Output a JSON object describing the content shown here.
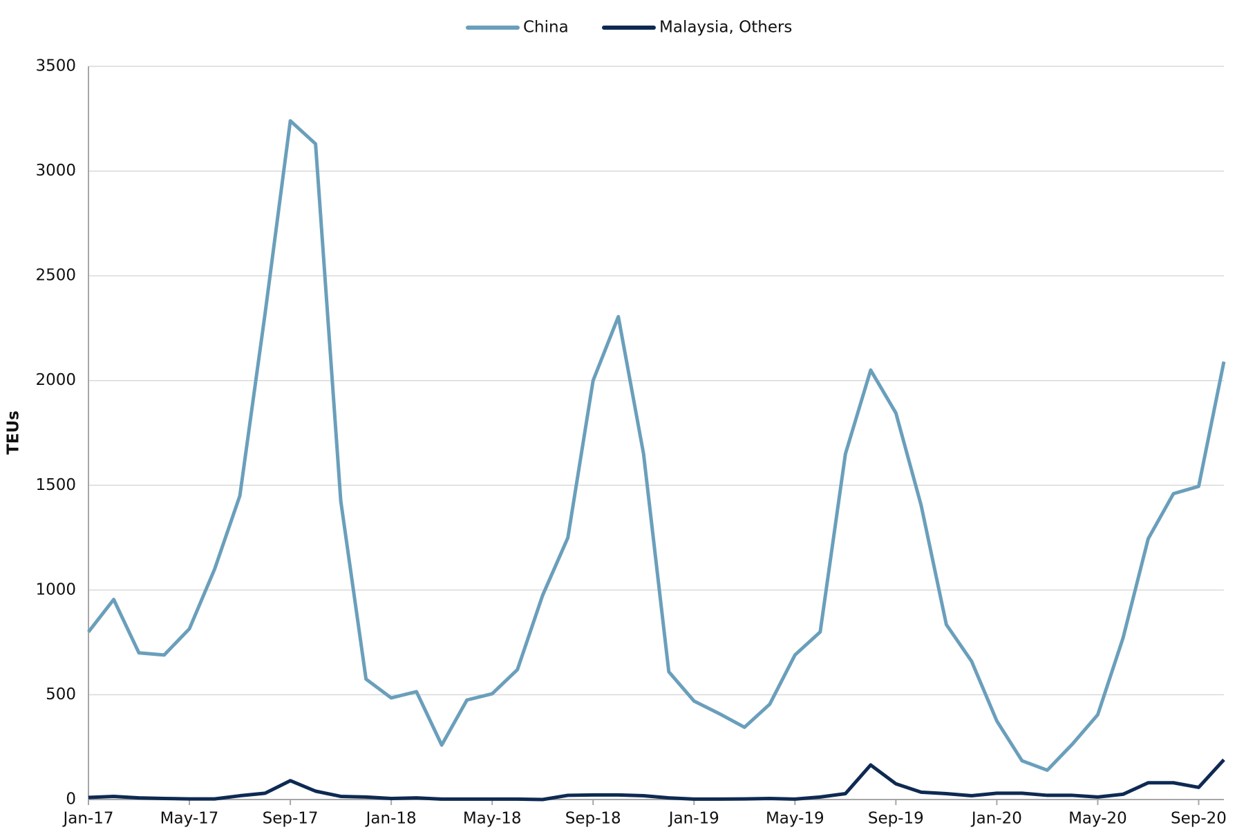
{
  "chart_data": {
    "type": "line",
    "y_label": "TEUs",
    "categories": [
      "Jan-17",
      null,
      null,
      null,
      "May-17",
      null,
      null,
      null,
      "Sep-17",
      null,
      null,
      null,
      "Jan-18",
      null,
      null,
      null,
      "May-18",
      null,
      null,
      null,
      "Sep-18",
      null,
      null,
      null,
      "Jan-19",
      null,
      null,
      null,
      "May-19",
      null,
      null,
      null,
      "Sep-19",
      null,
      null,
      null,
      "Jan-20",
      null,
      null,
      null,
      "May-20",
      null,
      null,
      null,
      "Sep-20",
      null
    ],
    "series": [
      {
        "name": "China",
        "color": "#6a9fbb",
        "values": [
          800,
          955,
          700,
          690,
          815,
          1100,
          1450,
          2320,
          3240,
          3130,
          1425,
          575,
          485,
          515,
          260,
          475,
          505,
          620,
          975,
          1250,
          2000,
          2305,
          1650,
          610,
          470,
          410,
          345,
          455,
          690,
          800,
          1650,
          2050,
          1845,
          1405,
          835,
          660,
          375,
          185,
          140,
          265,
          405,
          770,
          1245,
          1460,
          1495,
          2090
        ]
      },
      {
        "name": "Malaysia, Others",
        "color": "#0e2a52",
        "values": [
          10,
          15,
          8,
          5,
          3,
          3,
          18,
          30,
          90,
          40,
          15,
          12,
          5,
          8,
          2,
          2,
          2,
          2,
          0,
          20,
          22,
          22,
          18,
          8,
          2,
          2,
          3,
          5,
          2,
          12,
          28,
          165,
          75,
          35,
          28,
          18,
          30,
          30,
          20,
          20,
          12,
          25,
          80,
          80,
          58,
          190
        ]
      }
    ],
    "ylim": [
      0,
      3500
    ],
    "yticks": [
      0,
      500,
      1000,
      1500,
      2000,
      2500,
      3000,
      3500
    ],
    "grid": true,
    "legend": "top"
  }
}
